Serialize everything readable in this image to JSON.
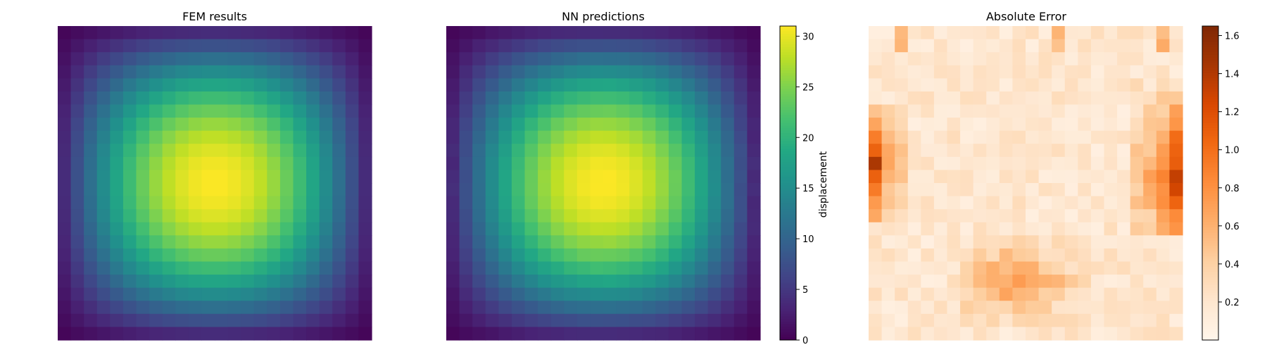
{
  "chart_data": [
    {
      "type": "heatmap",
      "title": "FEM results",
      "grid": [
        24,
        24
      ],
      "field": "separable sine bump u(i,j) = peak * sin(pi*(i+1)/(n+1)) * sin(pi*(j+1)/(n+1)), peak centred near column 12, row 11",
      "value_range": [
        0,
        31
      ],
      "peak": 31,
      "colormap": "viridis",
      "axes": "off"
    },
    {
      "type": "heatmap",
      "title": "NN predictions",
      "grid": [
        24,
        24
      ],
      "value_range": [
        0,
        31
      ],
      "peak": 31,
      "colormap": "viridis",
      "axes": "off",
      "colorbar": {
        "label": "displacement",
        "range": [
          0,
          31
        ],
        "ticks": [
          0,
          5,
          10,
          15,
          20,
          25,
          30
        ]
      }
    },
    {
      "type": "heatmap",
      "title": "Absolute Error",
      "grid": [
        24,
        24
      ],
      "value_range": [
        0,
        1.65
      ],
      "colormap": "oranges",
      "axes": "off",
      "notes": "largest errors (up to ~1.6) along the left and right edges around rows 9-13; elevated band (~0.7-0.9) in the lower-middle region",
      "colorbar": {
        "label": "",
        "range": [
          0,
          1.65
        ],
        "ticks": [
          0.2,
          0.4,
          0.6,
          0.8,
          1.0,
          1.2,
          1.4,
          1.6
        ]
      }
    }
  ]
}
